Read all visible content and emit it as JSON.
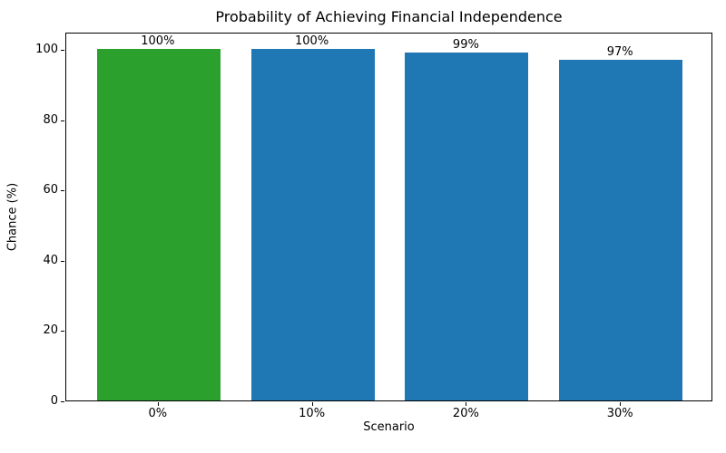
{
  "chart_data": {
    "type": "bar",
    "title": "Probability of Achieving Financial Independence",
    "xlabel": "Scenario",
    "ylabel": "Chance (%)",
    "categories": [
      "0%",
      "10%",
      "20%",
      "30%"
    ],
    "values": [
      100,
      100,
      99,
      97
    ],
    "bar_labels": [
      "100%",
      "100%",
      "99%",
      "97%"
    ],
    "bar_colors": [
      "#2ca02c",
      "#1f77b4",
      "#1f77b4",
      "#1f77b4"
    ],
    "ylim": [
      0,
      105
    ],
    "yticks": [
      0,
      20,
      40,
      60,
      80,
      100
    ],
    "grid": false,
    "legend_position": "none",
    "spine_color": "#000000",
    "background_color": "#ffffff"
  }
}
